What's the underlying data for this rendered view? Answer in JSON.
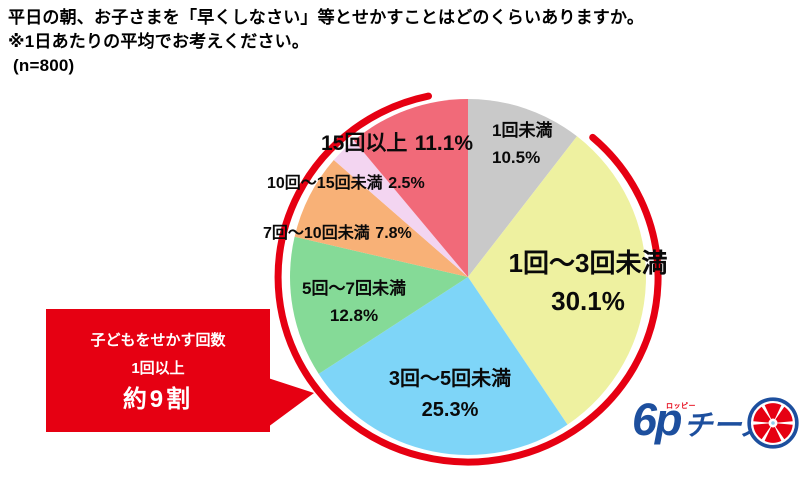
{
  "header": {
    "title_line1": "平日の朝、お子さまを「早くしなさい」等とせかすことはどのくらいありますか。",
    "title_line2": "※1日あたりの平均でお考えください。",
    "sample_size": "(n=800)"
  },
  "chart_data": {
    "type": "pie",
    "title": "平日の朝、お子さまを「早くしなさい」等とせかすことはどのくらいありますか。",
    "subtitle": "※1日あたりの平均でお考えください。",
    "n_label": "(n=800)",
    "unit": "%",
    "start": "12時方向から時計回り",
    "segments": [
      {
        "label": "1回未満",
        "value": 10.5,
        "pct_text": "10.5%",
        "color": "#c9c9c9"
      },
      {
        "label": "1回〜3回未満",
        "value": 30.1,
        "pct_text": "30.1%",
        "color": "#eef1a0"
      },
      {
        "label": "3回〜5回未満",
        "value": 25.3,
        "pct_text": "25.3%",
        "color": "#7ed5f8"
      },
      {
        "label": "5回〜7回未満",
        "value": 12.8,
        "pct_text": "12.8%",
        "color": "#85da97"
      },
      {
        "label": "7回〜10回未満",
        "value": 7.8,
        "pct_text": "7.8%",
        "color": "#f8b177"
      },
      {
        "label": "10回〜15回未満",
        "value": 2.5,
        "pct_text": "2.5%",
        "color": "#f3d5f1"
      },
      {
        "label": "15回以上",
        "value": 11.1,
        "pct_text": "11.1%",
        "color": "#f16a79"
      }
    ]
  },
  "callout": {
    "line1": "子どもをせかす回数",
    "line2": "1回以上",
    "line3": "約9割"
  },
  "logo": {
    "brand_number": "6p",
    "brand_name": "チーズ",
    "ruby": "ロッピー"
  },
  "colors": {
    "accent_red": "#e60012",
    "logo_blue": "#1d4f9e"
  }
}
